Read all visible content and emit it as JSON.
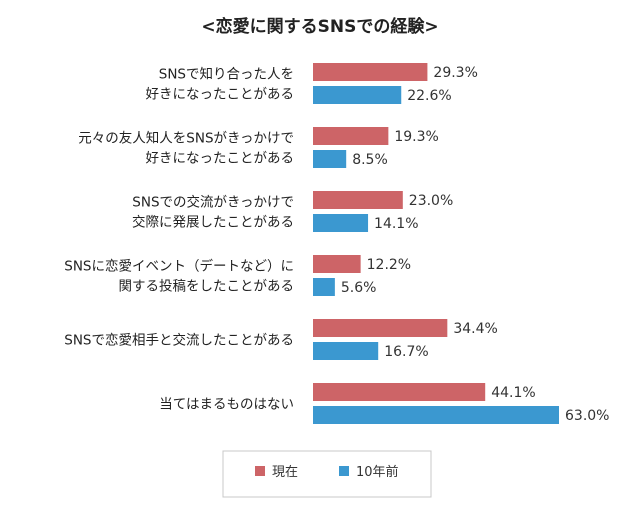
{
  "chart_data": {
    "type": "bar",
    "orientation": "horizontal",
    "title": "<恋愛に関するSNSでの経験>",
    "categories": [
      [
        "SNSで知り合った人を",
        "好きになったことがある"
      ],
      [
        "元々の友人知人をSNSがきっかけで",
        "好きになったことがある"
      ],
      [
        "SNSでの交流がきっかけで",
        "交際に発展したことがある"
      ],
      [
        "SNSに恋愛イベント（デートなど）に",
        "関する投稿をしたことがある"
      ],
      [
        "SNSで恋愛相手と交流したことがある"
      ],
      [
        "当てはまるものはない"
      ]
    ],
    "series": [
      {
        "name": "現在",
        "color": "#cd6467",
        "values": [
          29.3,
          19.3,
          23.0,
          12.2,
          34.4,
          44.1
        ],
        "value_labels": [
          "29.3%",
          "19.3%",
          "23.0%",
          "12.2%",
          "34.4%",
          "44.1%"
        ]
      },
      {
        "name": "10年前",
        "color": "#3b98d0",
        "values": [
          22.6,
          8.5,
          14.1,
          5.6,
          16.7,
          63.0
        ],
        "value_labels": [
          "22.6%",
          "8.5%",
          "14.1%",
          "5.6%",
          "16.7%",
          "63.0%"
        ]
      }
    ],
    "xlim": [
      0,
      63.0
    ],
    "xlabel": "",
    "ylabel": "",
    "grid": false,
    "legend": "bottom-center"
  }
}
